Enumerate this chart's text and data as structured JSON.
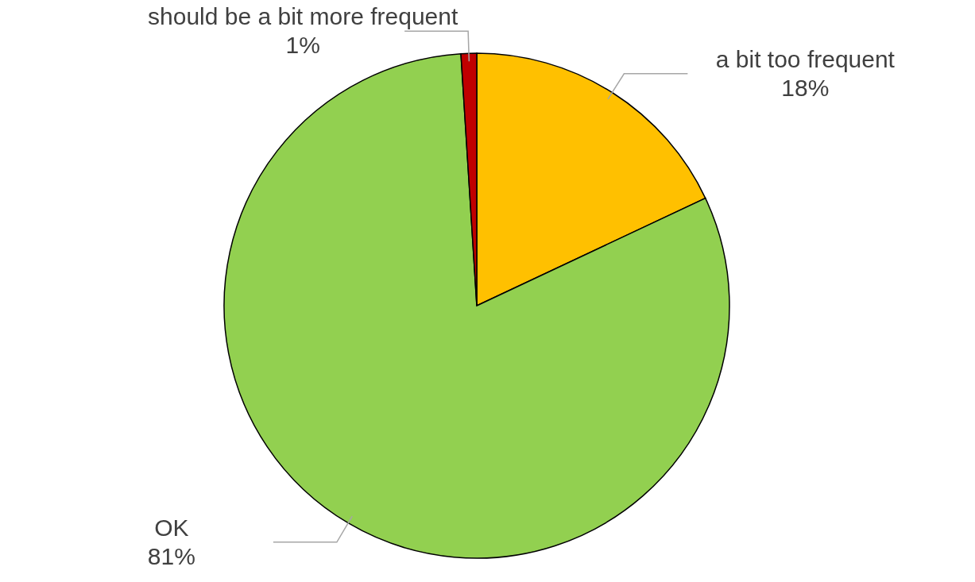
{
  "chart_data": {
    "type": "pie",
    "categories": [
      "a bit too frequent",
      "OK",
      "should be a bit more frequent"
    ],
    "values": [
      18,
      81,
      1
    ],
    "colors": [
      "#ffc000",
      "#92d050",
      "#c00000"
    ],
    "value_labels": [
      "18%",
      "81%",
      "1%"
    ]
  }
}
